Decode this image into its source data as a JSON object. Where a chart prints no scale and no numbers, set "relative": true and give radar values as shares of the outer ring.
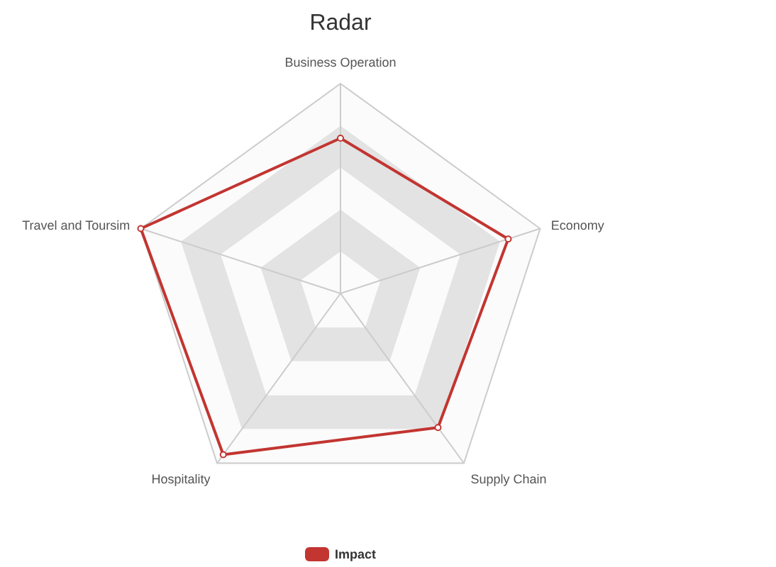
{
  "chart_data": {
    "type": "radar",
    "title": "Radar",
    "categories": [
      "Business Operation",
      "Economy",
      "Supply Chain",
      "Hospitality",
      "Travel and Toursim"
    ],
    "series": [
      {
        "name": "Impact",
        "color": "#c23531",
        "values": [
          0.74,
          0.84,
          0.79,
          0.95,
          1.0
        ]
      }
    ],
    "relative": true,
    "grid": true,
    "legend": "bottom",
    "marker": "circle"
  }
}
